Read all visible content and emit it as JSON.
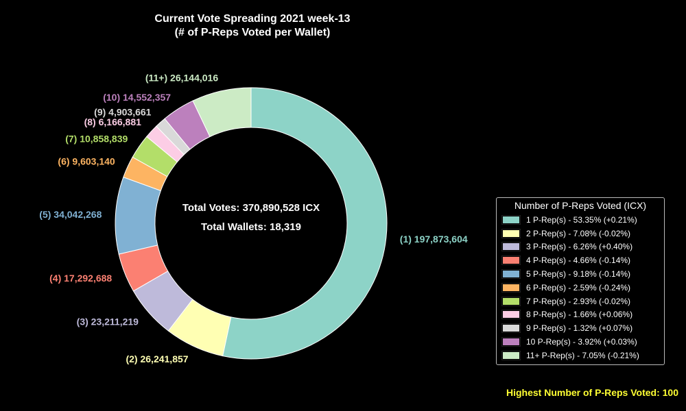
{
  "chart_data": {
    "type": "pie",
    "variant": "donut",
    "title_line1": "Current Vote Spreading 2021 week-13",
    "title_line2": "(# of P-Reps Voted per Wallet)",
    "center_line1": "Total Votes: 370,890,528 ICX",
    "center_line2": "Total Wallets: 18,319",
    "legend_title": "Number of P-Reps Voted (ICX)",
    "legend_placement": "right",
    "footer": "Highest Number of P-Reps Voted: 100",
    "slices": [
      {
        "label": "(1) 197,873,604",
        "value": 197873604,
        "color": "#8dd3c7",
        "legend": "1 P-Rep(s) - 53.35% (+0.21%)"
      },
      {
        "label": "(2) 26,241,857",
        "value": 26241857,
        "color": "#ffffb3",
        "legend": "2 P-Rep(s) - 7.08% (-0.02%)"
      },
      {
        "label": "(3) 23,211,219",
        "value": 23211219,
        "color": "#bebada",
        "legend": "3 P-Rep(s) - 6.26% (+0.40%)"
      },
      {
        "label": "(4) 17,292,688",
        "value": 17292688,
        "color": "#fb8072",
        "legend": "4 P-Rep(s) - 4.66% (-0.14%)"
      },
      {
        "label": "(5) 34,042,268",
        "value": 34042268,
        "color": "#80b1d3",
        "legend": "5 P-Rep(s) - 9.18% (-0.14%)"
      },
      {
        "label": "(6) 9,603,140",
        "value": 9603140,
        "color": "#fdb462",
        "legend": "6 P-Rep(s) - 2.59% (-0.24%)"
      },
      {
        "label": "(7) 10,858,839",
        "value": 10858839,
        "color": "#b3de69",
        "legend": "7 P-Rep(s) - 2.93% (-0.02%)"
      },
      {
        "label": "(8) 6,166,881",
        "value": 6166881,
        "color": "#fccde5",
        "legend": "8 P-Rep(s) - 1.66% (+0.06%)"
      },
      {
        "label": "(9) 4,903,661",
        "value": 4903661,
        "color": "#d9d9d9",
        "legend": "9 P-Rep(s) - 1.32% (+0.07%)"
      },
      {
        "label": "(10) 14,552,357",
        "value": 14552357,
        "color": "#bc80bd",
        "legend": "10 P-Rep(s) - 3.92% (+0.03%)"
      },
      {
        "label": "(11+) 26,144,016",
        "value": 26144016,
        "color": "#ccebc5",
        "legend": "11+ P-Rep(s) - 7.05% (-0.21%)"
      }
    ]
  }
}
